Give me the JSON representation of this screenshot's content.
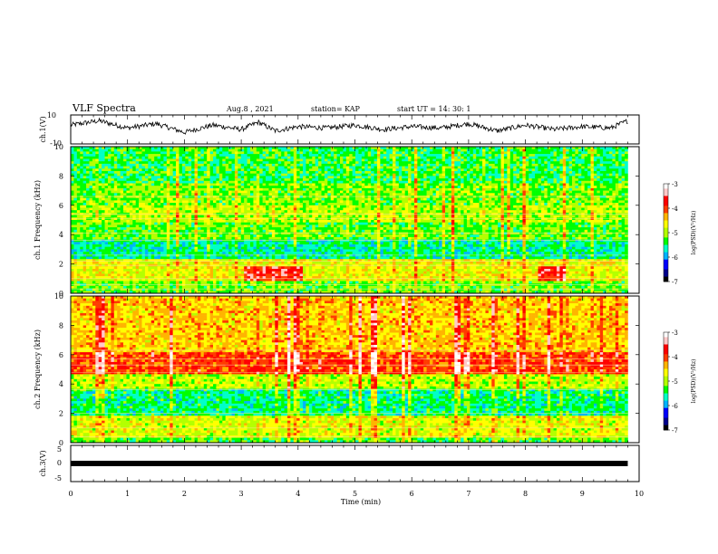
{
  "header": {
    "title": "VLF Spectra",
    "date": "Aug.8 , 2021",
    "station": "station= KAP",
    "start": "start UT = 14: 30: 1"
  },
  "chart_data": [
    {
      "type": "line",
      "name": "ch.1 waveform",
      "ylabel": "ch.1(V)",
      "ylim": [
        -10,
        10
      ],
      "yticks": [
        "10",
        "-10"
      ],
      "xlim": [
        0,
        10
      ],
      "x": [
        0,
        0.5,
        1.0,
        1.5,
        2.0,
        2.5,
        3.0,
        3.3,
        3.6,
        4.0,
        4.5,
        5.0,
        5.5,
        6.0,
        6.5,
        7.0,
        7.5,
        8.0,
        8.5,
        9.0,
        9.5,
        9.8
      ],
      "y": [
        3,
        6,
        1,
        4,
        -2,
        3,
        0,
        5,
        -1,
        2,
        1,
        3,
        0,
        2,
        1,
        4,
        -1,
        3,
        0,
        2,
        1,
        6
      ]
    },
    {
      "type": "heatmap",
      "name": "ch.1 spectrogram",
      "ylabel": "ch.1 Frequency (kHz)",
      "ylim": [
        0,
        10
      ],
      "yticks": [
        "0",
        "2",
        "4",
        "6",
        "8",
        "10"
      ],
      "xlim": [
        0,
        10
      ],
      "colorbar": {
        "label": "log(PSD)(V²/Hz)",
        "range": [
          -7,
          -3
        ],
        "ticks": [
          "-3",
          "-4",
          "-5",
          "-6",
          "-7"
        ]
      }
    },
    {
      "type": "heatmap",
      "name": "ch.2 spectrogram",
      "ylabel": "ch.2 Frequency (kHz)",
      "ylim": [
        0,
        10
      ],
      "yticks": [
        "0",
        "2",
        "4",
        "6",
        "8",
        "10"
      ],
      "xlim": [
        0,
        10
      ],
      "colorbar": {
        "label": "log(PSD)(V²/Hz)",
        "range": [
          -7,
          -3
        ],
        "ticks": [
          "-3",
          "-4",
          "-5",
          "-6",
          "-7"
        ]
      }
    },
    {
      "type": "line",
      "name": "ch.3 waveform",
      "ylabel": "ch.3(V)",
      "ylim": [
        -5,
        5
      ],
      "yticks": [
        "5",
        "0",
        "-5"
      ],
      "xlim": [
        0,
        10
      ],
      "x": [
        0,
        9.8
      ],
      "y": [
        0,
        0
      ]
    }
  ],
  "xaxis": {
    "label": "Time (min)",
    "ticks": [
      "0",
      "1",
      "2",
      "3",
      "4",
      "5",
      "6",
      "7",
      "8",
      "9",
      "10"
    ]
  },
  "colors": {
    "colormap": [
      "#000000",
      "#00008c",
      "#0000ff",
      "#00b4ff",
      "#00ffc8",
      "#00ff00",
      "#b4ff00",
      "#ffff00",
      "#ffb400",
      "#ff3c00",
      "#ff0000",
      "#ffc8c8",
      "#ffffff"
    ]
  }
}
